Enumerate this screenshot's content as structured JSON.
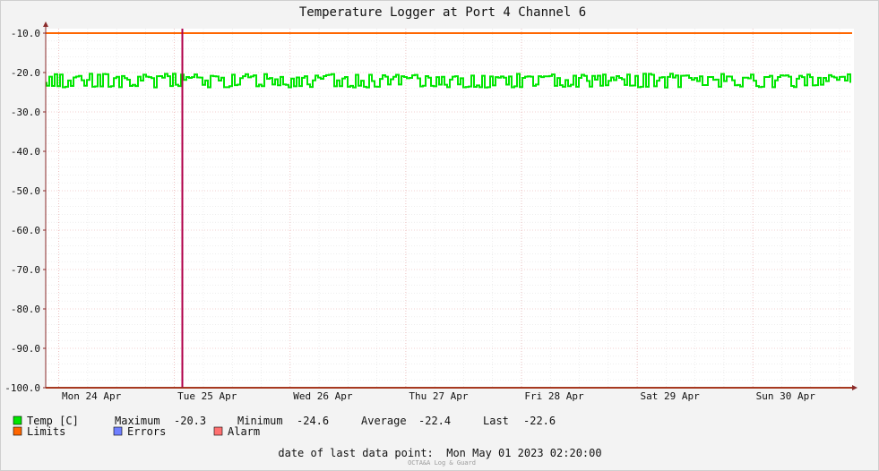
{
  "chart_data": {
    "type": "line",
    "title": "Temperature Logger at Port 4 Channel 6",
    "x": {
      "tick_labels": [
        "Mon 24 Apr",
        "Tue 25 Apr",
        "Wed 26 Apr",
        "Thu 27 Apr",
        "Fri 28 Apr",
        "Sat 29 Apr",
        "Sun 30 Apr"
      ]
    },
    "y": {
      "ylim": [
        -100,
        -10
      ],
      "tick_labels": [
        "-10.0",
        "-20.0",
        "-30.0",
        "-40.0",
        "-50.0",
        "-60.0",
        "-70.0",
        "-80.0",
        "-90.0",
        "-100.0"
      ]
    },
    "grid": true,
    "series": [
      {
        "name": "Temp [C]",
        "color": "#00e600",
        "range": [
          -24.6,
          -20.3
        ],
        "average": -22.4,
        "last": -22.6
      },
      {
        "name": "Limits",
        "color": "#ff6600",
        "values": [
          -10.0,
          -100.0
        ]
      }
    ],
    "marker": {
      "color": "#b0004a",
      "position_label": "Tue 25 Apr"
    },
    "stats": {
      "max_label": "Maximum",
      "max_value": "-20.3",
      "min_label": "Minimum",
      "min_value": "-24.6",
      "avg_label": "Average",
      "avg_value": "-22.4",
      "last_label": "Last",
      "last_value": "-22.6"
    },
    "legend": {
      "temp": {
        "label": "Temp [C]",
        "color": "#00e600"
      },
      "limits": {
        "label": "Limits",
        "color": "#ff6600"
      },
      "errors": {
        "label": "Errors",
        "color": "#6f7fff"
      },
      "alarm": {
        "label": "Alarm",
        "color": "#ff7070"
      }
    },
    "footer": {
      "last_point": "date of last data point:  Mon May 01 2023 02:20:00",
      "watermark": "OCTA&A Log & Guard"
    }
  }
}
